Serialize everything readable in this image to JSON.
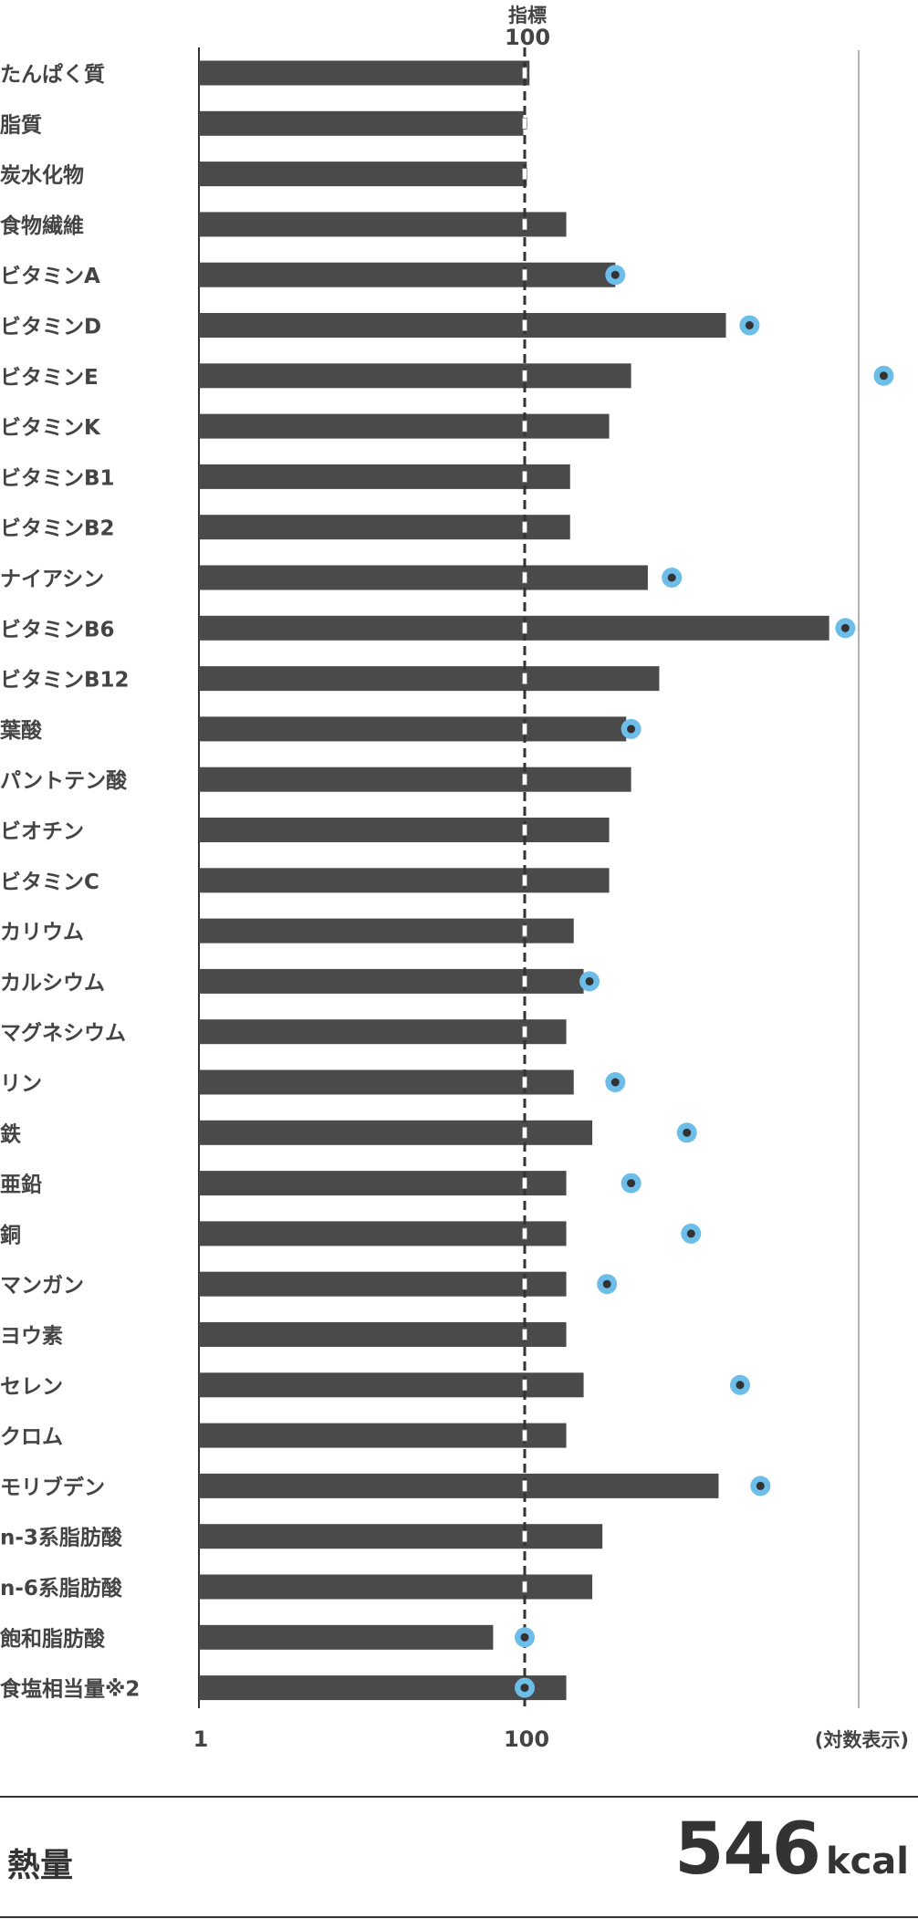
{
  "chart_data": {
    "type": "bar",
    "orientation": "horizontal",
    "scale": "log",
    "reference": {
      "title": "指標",
      "value": 100,
      "value_label": "100"
    },
    "x_ticks": [
      {
        "value": 1,
        "label": "1"
      },
      {
        "value": 100,
        "label": "100"
      }
    ],
    "xlim": [
      1,
      30000
    ],
    "x_note": "(対数表示)",
    "colors": {
      "bar": "#4a4a4a",
      "marker": "#6cbde8",
      "marker_dot": "#333333",
      "axis": "#333333"
    },
    "categories": [
      "たんぱく質",
      "脂質",
      "炭水化物",
      "食物繊維",
      "ビタミンA",
      "ビタミンD",
      "ビタミンE",
      "ビタミンK",
      "ビタミンB1",
      "ビタミンB2",
      "ナイアシン",
      "ビタミンB6",
      "ビタミンB12",
      "葉酸",
      "パントテン酸",
      "ビオチン",
      "ビタミンC",
      "カリウム",
      "カルシウム",
      "マグネシウム",
      "リン",
      "鉄",
      "亜鉛",
      "銅",
      "マンガン",
      "ヨウ素",
      "セレン",
      "クロム",
      "モリブデン",
      "n-3系脂肪酸",
      "n-6系脂肪酸",
      "飽和脂肪酸",
      "食塩相当量※2"
    ],
    "values": [
      107,
      98,
      103,
      180,
      360,
      1720,
      450,
      330,
      190,
      190,
      570,
      7400,
      670,
      420,
      450,
      330,
      330,
      200,
      230,
      180,
      200,
      260,
      180,
      180,
      180,
      180,
      230,
      180,
      1550,
      300,
      260,
      64,
      180
    ],
    "markers": [
      null,
      null,
      null,
      null,
      360,
      2400,
      16000,
      null,
      null,
      null,
      800,
      9300,
      null,
      450,
      null,
      null,
      null,
      null,
      250,
      null,
      360,
      990,
      450,
      1050,
      320,
      null,
      2100,
      null,
      2800,
      null,
      null,
      100,
      100
    ]
  },
  "footer": {
    "energy_label": "熱量",
    "energy_value": "546",
    "energy_unit": "kcal"
  }
}
